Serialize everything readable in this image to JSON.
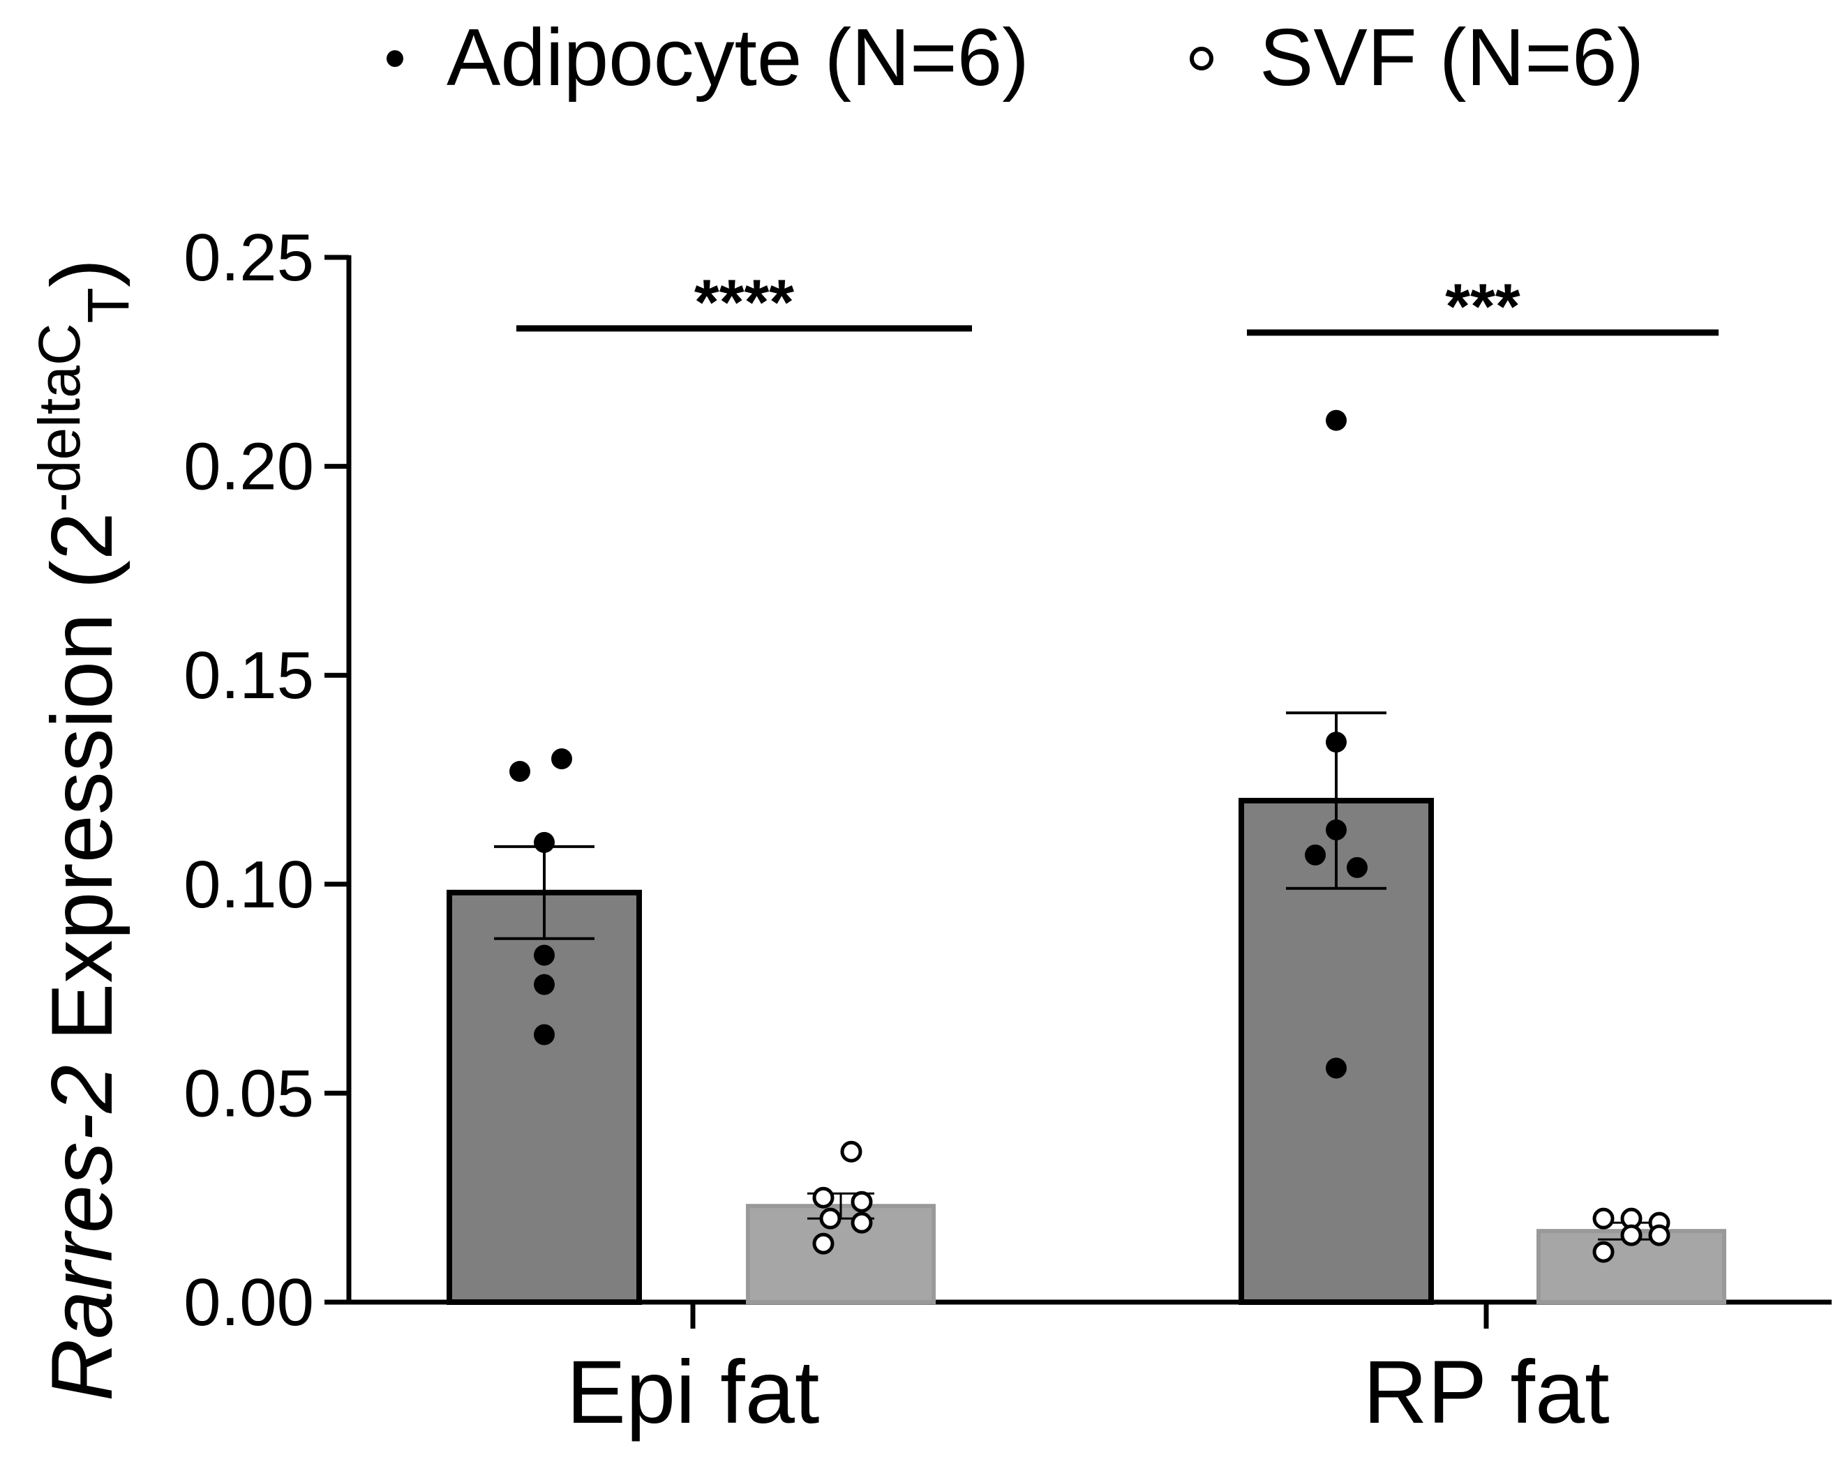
{
  "chart_data": {
    "type": "bar",
    "title": "",
    "categories": [
      "Epi fat",
      "RP fat"
    ],
    "ylabel": {
      "gene": "Rarres-2",
      "text": " Expression (2",
      "superscript": "-deltaC",
      "subscript": "T",
      "close": ")"
    },
    "ylim": [
      0,
      0.25
    ],
    "yticks": [
      "0.00",
      "0.05",
      "0.10",
      "0.15",
      "0.20",
      "0.25"
    ],
    "legend_position": "top",
    "series": [
      {
        "name": "Adipocyte (N=6)",
        "marker": "filled-circle",
        "bar_color": "#7f7f7f",
        "bar_edge": "#000000",
        "values": [
          0.098,
          0.12
        ],
        "sem": [
          0.011,
          0.021
        ],
        "points": [
          [
            0.127,
            0.13,
            0.11,
            0.083,
            0.076,
            0.064
          ],
          [
            0.211,
            0.134,
            0.113,
            0.107,
            0.104,
            0.056
          ]
        ]
      },
      {
        "name": "SVF (N=6)",
        "marker": "open-circle",
        "bar_color": "#a6a6a6",
        "bar_edge": "#a6a6a6",
        "values": [
          0.023,
          0.017
        ],
        "sem": [
          0.003,
          0.002
        ],
        "points": [
          [
            0.036,
            0.025,
            0.024,
            0.02,
            0.019,
            0.014
          ],
          [
            0.02,
            0.02,
            0.019,
            0.016,
            0.016,
            0.012
          ]
        ]
      }
    ],
    "significance": [
      {
        "category": "Epi fat",
        "label": "****",
        "y": 0.233
      },
      {
        "category": "RP fat",
        "label": "***",
        "y": 0.232
      }
    ]
  }
}
